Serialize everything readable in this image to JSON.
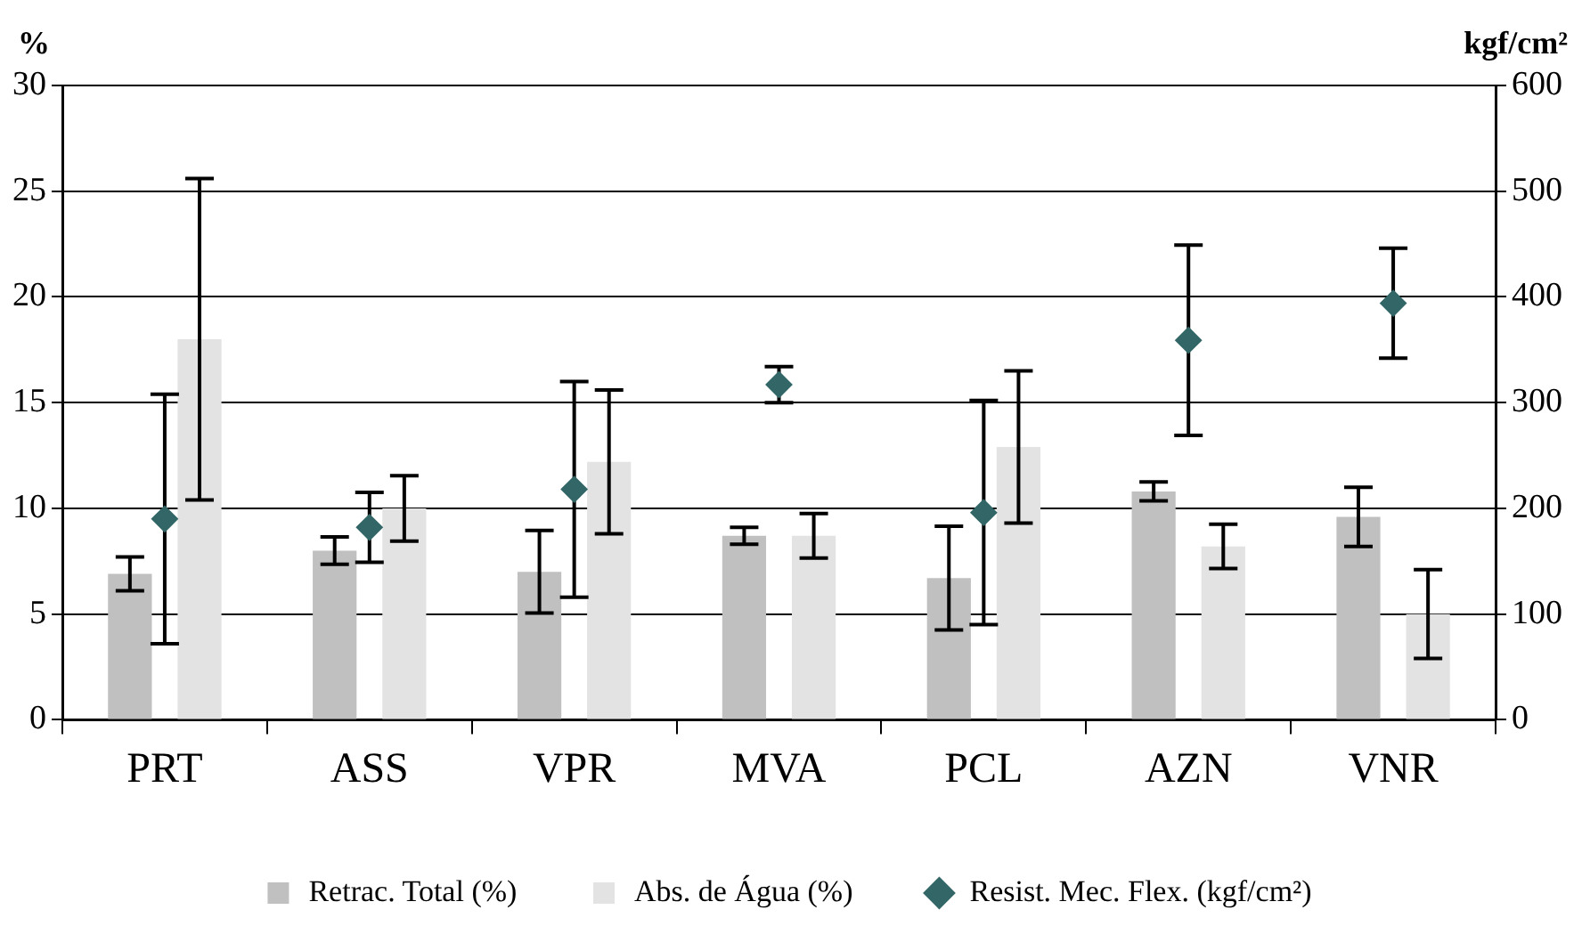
{
  "chart_data": {
    "type": "bar",
    "categories": [
      "PRT",
      "ASS",
      "VPR",
      "MVA",
      "PCL",
      "AZN",
      "VNR"
    ],
    "series": [
      {
        "name": "Retrac. Total (%)",
        "color": "#c0c0c0",
        "values": [
          6.9,
          8.0,
          7.0,
          8.7,
          6.7,
          10.8,
          9.6
        ],
        "errors": [
          0.8,
          0.65,
          1.95,
          0.4,
          2.45,
          0.45,
          1.4
        ]
      },
      {
        "name": "Abs. de Água (%)",
        "color": "#e3e3e3",
        "values": [
          18.0,
          10.0,
          12.2,
          8.7,
          12.9,
          8.2,
          5.0
        ],
        "errors": [
          7.6,
          1.55,
          3.4,
          1.05,
          3.6,
          1.05,
          2.1
        ]
      },
      {
        "name": "Resist. Mec. Flex. (kgf/cm²)",
        "type": "scatter",
        "axis": "y2",
        "marker": "diamond",
        "color": "#336666",
        "values": [
          190,
          182,
          218,
          317,
          196,
          359,
          394
        ],
        "errors": [
          118,
          33,
          102,
          17,
          106,
          90,
          52
        ]
      }
    ],
    "ylabel": "%",
    "y2label": "kgf/cm²",
    "ylim": [
      0,
      30
    ],
    "yticks": [
      0,
      5,
      10,
      15,
      20,
      25,
      30
    ],
    "y2lim": [
      0,
      600
    ],
    "y2ticks": [
      0,
      100,
      200,
      300,
      400,
      500,
      600
    ],
    "grid": "y",
    "legend": "bottom"
  }
}
